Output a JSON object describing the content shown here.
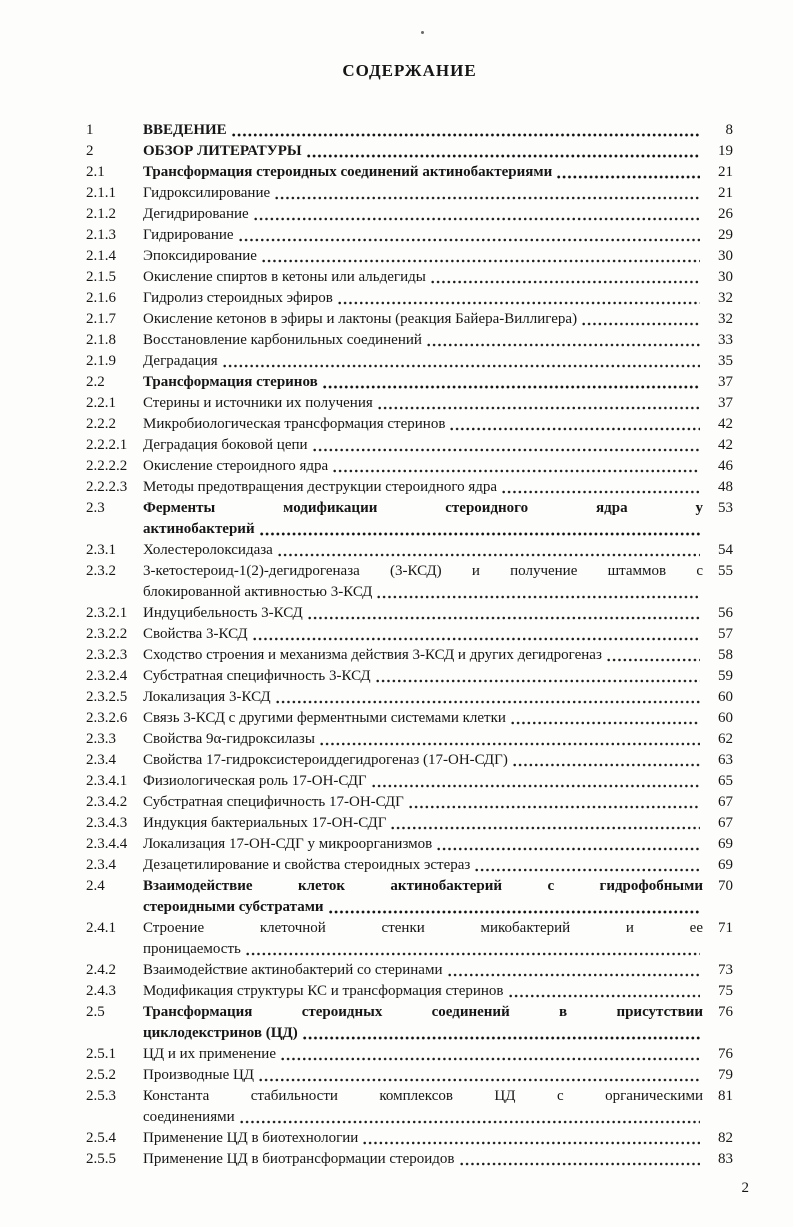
{
  "page": {
    "heading": "СОДЕРЖАНИЕ",
    "footer_page_number": "2"
  },
  "colors": {
    "text": "#161616",
    "background": "#fdfdfc",
    "dot_leader": "#1c1c1c"
  },
  "toc": {
    "entries": [
      {
        "num": "1",
        "title": "ВВЕДЕНИЕ",
        "page": "8",
        "bold": true
      },
      {
        "num": "2",
        "title": "ОБЗОР ЛИТЕРАТУРЫ",
        "page": "19",
        "bold": true
      },
      {
        "num": "2.1",
        "title": "Трансформация стероидных соединений актинобактериями",
        "page": "21",
        "bold": true
      },
      {
        "num": "2.1.1",
        "title": "Гидроксилирование",
        "page": "21"
      },
      {
        "num": "2.1.2",
        "title": "Дегидрирование",
        "page": "26"
      },
      {
        "num": "2.1.3",
        "title": "Гидрирование",
        "page": "29"
      },
      {
        "num": "2.1.4",
        "title": "Эпоксидирование",
        "page": "30"
      },
      {
        "num": "2.1.5",
        "title": "Окисление спиртов в кетоны или альдегиды",
        "page": "30"
      },
      {
        "num": "2.1.6",
        "title": "Гидролиз стероидных эфиров",
        "page": "32"
      },
      {
        "num": "2.1.7",
        "title": "Окисление кетонов в эфиры и лактоны (реакция Байера-Виллигера)",
        "page": "32"
      },
      {
        "num": "2.1.8",
        "title": "Восстановление карбонильных соединений",
        "page": "33"
      },
      {
        "num": "2.1.9",
        "title": "Деградация",
        "page": "35"
      },
      {
        "num": "2.2",
        "title": "Трансформация стеринов",
        "page": "37",
        "bold": true
      },
      {
        "num": "2.2.1",
        "title": "Стерины и источники их получения",
        "page": "37"
      },
      {
        "num": "2.2.2",
        "title": "Микробиологическая трансформация стеринов",
        "page": "42"
      },
      {
        "num": "2.2.2.1",
        "title": "Деградация боковой цепи",
        "page": "42"
      },
      {
        "num": "2.2.2.2",
        "title": "Окисление стероидного ядра",
        "page": "46"
      },
      {
        "num": "2.2.2.3",
        "title": "Методы предотвращения деструкции стероидного ядра",
        "page": "48"
      },
      {
        "num": "2.3",
        "lines": [
          "Ферменты модификации стероидного ядра у",
          "актинобактерий"
        ],
        "page": "53",
        "bold": true
      },
      {
        "num": "2.3.1",
        "title": "Холестеролоксидаза",
        "page": "54"
      },
      {
        "num": "2.3.2",
        "lines": [
          "3-кетостероид-1(2)-дегидрогеназа (3-КСД) и получение штаммов с",
          "блокированной активностью 3-КСД"
        ],
        "page": "55"
      },
      {
        "num": "2.3.2.1",
        "title": "Индуцибельность 3-КСД",
        "page": "56"
      },
      {
        "num": "2.3.2.2",
        "title": "Свойства 3-КСД",
        "page": "57"
      },
      {
        "num": "2.3.2.3",
        "title": "Сходство строения и механизма действия 3-КСД и других дегидрогеназ",
        "page": "58"
      },
      {
        "num": "2.3.2.4",
        "title": "Субстратная специфичность 3-КСД",
        "page": "59"
      },
      {
        "num": "2.3.2.5",
        "title": "Локализация 3-КСД",
        "page": "60"
      },
      {
        "num": "2.3.2.6",
        "title": "Связь 3-КСД с другими ферментными системами клетки",
        "page": "60"
      },
      {
        "num": "2.3.3",
        "title": "Свойства 9α-гидроксилазы",
        "page": "62"
      },
      {
        "num": "2.3.4",
        "title": "Свойства 17-гидроксистероиддегидрогеназ (17-ОН-СДГ)",
        "page": "63"
      },
      {
        "num": "2.3.4.1",
        "title": "Физиологическая роль 17-ОН-СДГ",
        "page": "65"
      },
      {
        "num": "2.3.4.2",
        "title": "Субстратная специфичность 17-ОН-СДГ",
        "page": "67"
      },
      {
        "num": "2.3.4.3",
        "title": "Индукция бактериальных 17-ОН-СДГ",
        "page": "67"
      },
      {
        "num": "2.3.4.4",
        "title": "Локализация 17-ОН-СДГ у микроорганизмов",
        "page": "69"
      },
      {
        "num": "2.3.4",
        "title": "Дезацетилирование и свойства стероидных эстераз",
        "page": "69"
      },
      {
        "num": "2.4",
        "lines": [
          "Взаимодействие клеток актинобактерий с гидрофобными",
          "стероидными субстратами"
        ],
        "page": "70",
        "bold": true
      },
      {
        "num": "2.4.1",
        "lines": [
          "Строение клеточной стенки микобактерий и ее",
          "проницаемость"
        ],
        "page": "71"
      },
      {
        "num": "2.4.2",
        "title": "Взаимодействие актинобактерий со стеринами",
        "page": "73"
      },
      {
        "num": "2.4.3",
        "title": "Модификация структуры КС и трансформация стеринов",
        "page": "75"
      },
      {
        "num": "2.5",
        "lines": [
          "Трансформация стероидных соединений в присутствии",
          "циклодекстринов (ЦД)"
        ],
        "page": "76",
        "bold": true
      },
      {
        "num": "2.5.1",
        "title": "ЦД и их применение",
        "page": "76"
      },
      {
        "num": "2.5.2",
        "title": "Производные ЦД",
        "page": "79"
      },
      {
        "num": "2.5.3",
        "lines": [
          "Константа стабильности комплексов ЦД с органическими",
          "соединениями"
        ],
        "page": "81"
      },
      {
        "num": "2.5.4",
        "title": "Применение ЦД в биотехнологии",
        "page": "82"
      },
      {
        "num": "2.5.5",
        "title": "Применение ЦД в биотрансформации стероидов",
        "page": "83"
      }
    ]
  }
}
